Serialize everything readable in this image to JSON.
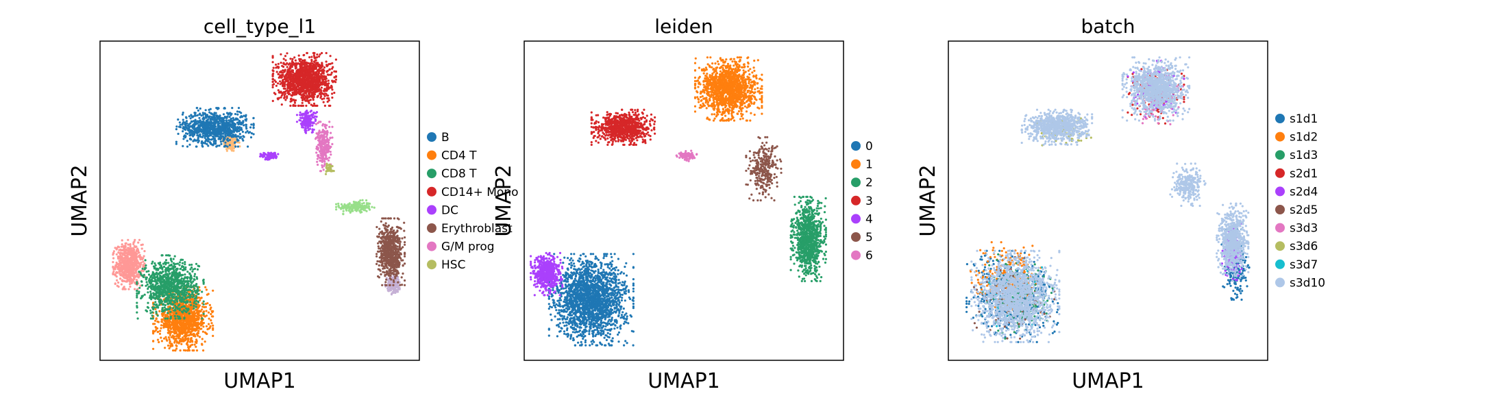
{
  "chart_data": [
    {
      "type": "scatter",
      "title": "cell_type_l1",
      "xlabel": "UMAP1",
      "ylabel": "UMAP2",
      "xlim": [
        0,
        10
      ],
      "ylim": [
        0,
        10
      ],
      "grid": false,
      "ticks": false,
      "legend_position": "right",
      "series": [
        {
          "name": "B",
          "color": "#1f77b4",
          "clusters": [
            {
              "cx": 3.6,
              "cy": 7.3,
              "rx": 1.1,
              "ry": 0.55,
              "n": 900
            }
          ]
        },
        {
          "name": "CD4 T",
          "color": "#ff7f0e",
          "clusters": [
            {
              "cx": 2.6,
              "cy": 1.3,
              "rx": 0.85,
              "ry": 0.9,
              "n": 1200
            }
          ]
        },
        {
          "name": "CD8 T",
          "color": "#279e68",
          "clusters": [
            {
              "cx": 2.2,
              "cy": 2.3,
              "rx": 0.95,
              "ry": 0.9,
              "n": 1000
            }
          ]
        },
        {
          "name": "CD14+ Mono",
          "color": "#d62728",
          "clusters": [
            {
              "cx": 6.4,
              "cy": 8.8,
              "rx": 0.9,
              "ry": 0.75,
              "n": 1300
            }
          ]
        },
        {
          "name": "DC",
          "color": "#aa40fc",
          "clusters": [
            {
              "cx": 6.5,
              "cy": 7.5,
              "rx": 0.3,
              "ry": 0.35,
              "n": 180
            },
            {
              "cx": 5.3,
              "cy": 6.4,
              "rx": 0.3,
              "ry": 0.12,
              "n": 90
            }
          ]
        },
        {
          "name": "Erythroblast",
          "color": "#8c564b",
          "clusters": [
            {
              "cx": 9.1,
              "cy": 3.4,
              "rx": 0.4,
              "ry": 0.95,
              "n": 700
            }
          ]
        },
        {
          "name": "G/M prog",
          "color": "#e377c2",
          "clusters": [
            {
              "cx": 7.0,
              "cy": 6.7,
              "rx": 0.25,
              "ry": 0.7,
              "n": 250
            }
          ]
        },
        {
          "name": "HSC",
          "color": "#b5bd61",
          "clusters": [
            {
              "cx": 7.2,
              "cy": 6.0,
              "rx": 0.15,
              "ry": 0.15,
              "n": 40
            }
          ]
        }
      ],
      "extra_point_groups": [
        {
          "color": "#ffbb78",
          "clusters": [
            {
              "cx": 4.1,
              "cy": 6.8,
              "rx": 0.25,
              "ry": 0.3,
              "n": 120
            }
          ]
        },
        {
          "color": "#98df8a",
          "clusters": [
            {
              "cx": 8.0,
              "cy": 4.8,
              "rx": 0.55,
              "ry": 0.2,
              "n": 180
            }
          ]
        },
        {
          "color": "#ff9896",
          "clusters": [
            {
              "cx": 0.9,
              "cy": 3.0,
              "rx": 0.45,
              "ry": 0.7,
              "n": 700
            }
          ]
        },
        {
          "color": "#c5b0d5",
          "clusters": [
            {
              "cx": 9.2,
              "cy": 2.4,
              "rx": 0.25,
              "ry": 0.35,
              "n": 160
            }
          ]
        }
      ]
    },
    {
      "type": "scatter",
      "title": "leiden",
      "xlabel": "UMAP1",
      "ylabel": "UMAP2",
      "xlim": [
        0,
        10
      ],
      "ylim": [
        0,
        10
      ],
      "grid": false,
      "ticks": false,
      "legend_position": "right",
      "series": [
        {
          "name": "0",
          "color": "#1f77b4",
          "clusters": [
            {
              "cx": 2.1,
              "cy": 1.9,
              "rx": 1.2,
              "ry": 1.3,
              "n": 2000
            }
          ]
        },
        {
          "name": "1",
          "color": "#ff7f0e",
          "clusters": [
            {
              "cx": 6.4,
              "cy": 8.5,
              "rx": 0.95,
              "ry": 0.9,
              "n": 1400
            }
          ]
        },
        {
          "name": "2",
          "color": "#279e68",
          "clusters": [
            {
              "cx": 8.9,
              "cy": 3.8,
              "rx": 0.5,
              "ry": 1.2,
              "n": 900
            }
          ]
        },
        {
          "name": "3",
          "color": "#d62728",
          "clusters": [
            {
              "cx": 3.1,
              "cy": 7.3,
              "rx": 0.9,
              "ry": 0.5,
              "n": 900
            }
          ]
        },
        {
          "name": "4",
          "color": "#aa40fc",
          "clusters": [
            {
              "cx": 0.7,
              "cy": 2.7,
              "rx": 0.45,
              "ry": 0.6,
              "n": 600
            }
          ]
        },
        {
          "name": "5",
          "color": "#8c564b",
          "clusters": [
            {
              "cx": 7.5,
              "cy": 6.0,
              "rx": 0.5,
              "ry": 0.9,
              "n": 300
            }
          ]
        },
        {
          "name": "6",
          "color": "#e377c2",
          "clusters": [
            {
              "cx": 5.1,
              "cy": 6.4,
              "rx": 0.3,
              "ry": 0.15,
              "n": 100
            }
          ]
        }
      ]
    },
    {
      "type": "scatter",
      "title": "batch",
      "xlabel": "UMAP1",
      "ylabel": "UMAP2",
      "xlim": [
        0,
        10
      ],
      "ylim": [
        0,
        10
      ],
      "grid": false,
      "ticks": false,
      "legend_position": "right",
      "series": [
        {
          "name": "s1d1",
          "color": "#1f77b4",
          "clusters": [
            {
              "cx": 2.0,
              "cy": 2.0,
              "rx": 1.3,
              "ry": 1.3,
              "n": 600
            },
            {
              "cx": 9.0,
              "cy": 3.0,
              "rx": 0.4,
              "ry": 1.0,
              "n": 250
            }
          ]
        },
        {
          "name": "s1d2",
          "color": "#ff7f0e",
          "clusters": [
            {
              "cx": 1.8,
              "cy": 2.6,
              "rx": 1.0,
              "ry": 1.0,
              "n": 200
            }
          ]
        },
        {
          "name": "s1d3",
          "color": "#279e68",
          "clusters": [
            {
              "cx": 2.2,
              "cy": 2.0,
              "rx": 1.1,
              "ry": 1.2,
              "n": 200
            }
          ]
        },
        {
          "name": "s2d1",
          "color": "#d62728",
          "clusters": [
            {
              "cx": 6.5,
              "cy": 8.3,
              "rx": 0.8,
              "ry": 0.8,
              "n": 150
            }
          ]
        },
        {
          "name": "s2d4",
          "color": "#aa40fc",
          "clusters": [
            {
              "cx": 8.9,
              "cy": 3.4,
              "rx": 0.3,
              "ry": 0.8,
              "n": 200
            },
            {
              "cx": 6.5,
              "cy": 8.5,
              "rx": 0.8,
              "ry": 0.8,
              "n": 100
            }
          ]
        },
        {
          "name": "s2d5",
          "color": "#8c564b",
          "clusters": [
            {
              "cx": 2.0,
              "cy": 2.0,
              "rx": 1.2,
              "ry": 1.2,
              "n": 100
            }
          ]
        },
        {
          "name": "s3d3",
          "color": "#e377c2",
          "clusters": [
            {
              "cx": 6.5,
              "cy": 8.2,
              "rx": 0.8,
              "ry": 0.8,
              "n": 100
            }
          ]
        },
        {
          "name": "s3d6",
          "color": "#b5bd61",
          "clusters": [
            {
              "cx": 3.5,
              "cy": 7.2,
              "rx": 0.9,
              "ry": 0.5,
              "n": 80
            }
          ]
        },
        {
          "name": "s3d7",
          "color": "#17becf",
          "clusters": [
            {
              "cx": 2.0,
              "cy": 2.0,
              "rx": 1.0,
              "ry": 1.0,
              "n": 60
            }
          ]
        },
        {
          "name": "s3d10",
          "color": "#aec7e8",
          "clusters": [
            {
              "cx": 2.1,
              "cy": 2.0,
              "rx": 1.25,
              "ry": 1.3,
              "n": 1600
            },
            {
              "cx": 6.5,
              "cy": 8.5,
              "rx": 0.95,
              "ry": 0.9,
              "n": 1100
            },
            {
              "cx": 3.4,
              "cy": 7.3,
              "rx": 1.0,
              "ry": 0.5,
              "n": 800
            },
            {
              "cx": 8.9,
              "cy": 3.7,
              "rx": 0.45,
              "ry": 1.1,
              "n": 700
            },
            {
              "cx": 7.5,
              "cy": 5.5,
              "rx": 0.5,
              "ry": 0.6,
              "n": 250
            }
          ]
        }
      ]
    }
  ]
}
